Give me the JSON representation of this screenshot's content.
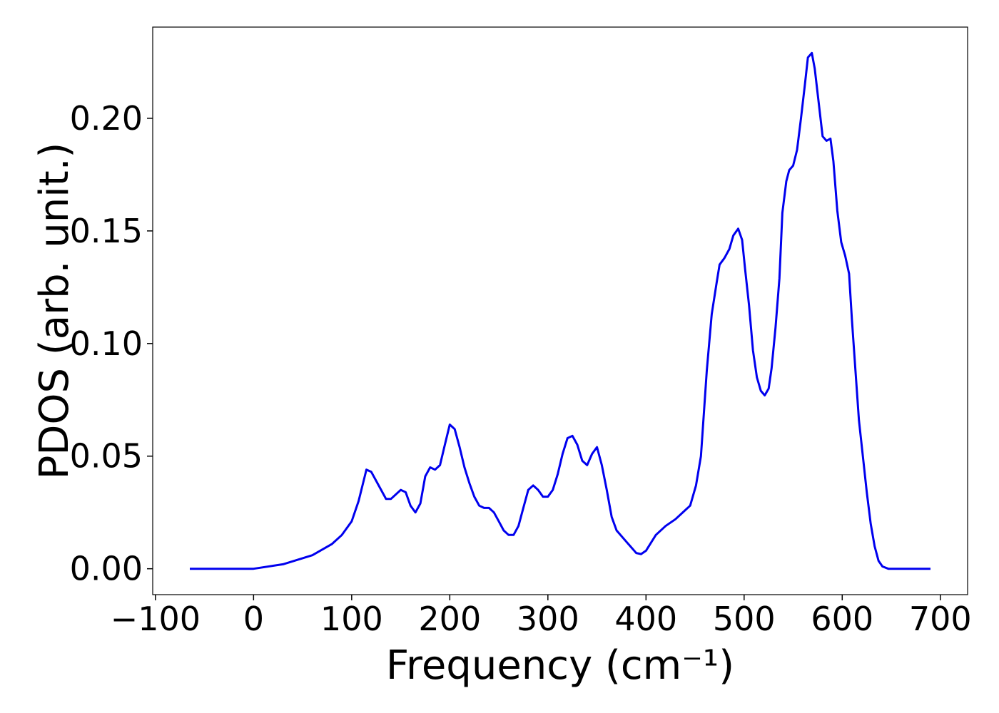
{
  "chart_data": {
    "type": "line",
    "xlabel": "Frequency (cm⁻¹)",
    "ylabel": "PDOS (arb. unit.)",
    "x": [
      -65,
      0,
      30,
      60,
      80,
      90,
      100,
      107,
      115,
      120,
      130,
      135,
      140,
      150,
      155,
      160,
      165,
      170,
      175,
      180,
      185,
      190,
      195,
      200,
      205,
      210,
      215,
      220,
      225,
      230,
      235,
      240,
      245,
      250,
      255,
      260,
      265,
      270,
      275,
      280,
      285,
      290,
      295,
      300,
      305,
      310,
      315,
      320,
      325,
      330,
      335,
      340,
      345,
      350,
      355,
      360,
      365,
      370,
      380,
      390,
      395,
      400,
      410,
      420,
      430,
      440,
      445,
      451,
      456,
      462,
      467,
      472,
      475,
      480,
      485,
      489,
      494,
      498,
      501,
      505,
      509,
      513,
      517,
      521,
      525,
      528,
      532,
      536,
      539,
      543,
      546,
      550,
      554,
      558,
      562,
      565,
      569,
      572,
      576,
      580,
      584,
      588,
      591,
      595,
      599,
      603,
      607,
      610,
      614,
      617,
      621,
      625,
      629,
      633,
      637,
      641,
      647,
      690
    ],
    "series": [
      {
        "name": "PDOS",
        "color": "#0000ee",
        "values": [
          0,
          0,
          0.002,
          0.006,
          0.011,
          0.015,
          0.021,
          0.03,
          0.044,
          0.043,
          0.035,
          0.031,
          0.031,
          0.035,
          0.034,
          0.028,
          0.025,
          0.029,
          0.041,
          0.045,
          0.044,
          0.046,
          0.055,
          0.064,
          0.062,
          0.054,
          0.045,
          0.038,
          0.032,
          0.028,
          0.027,
          0.027,
          0.025,
          0.021,
          0.017,
          0.015,
          0.015,
          0.019,
          0.027,
          0.035,
          0.037,
          0.035,
          0.032,
          0.032,
          0.035,
          0.042,
          0.051,
          0.058,
          0.059,
          0.055,
          0.048,
          0.046,
          0.051,
          0.054,
          0.046,
          0.035,
          0.023,
          0.017,
          0.012,
          0.007,
          0.0065,
          0.008,
          0.015,
          0.019,
          0.022,
          0.026,
          0.028,
          0.037,
          0.05,
          0.088,
          0.113,
          0.127,
          0.135,
          0.138,
          0.142,
          0.148,
          0.151,
          0.146,
          0.133,
          0.117,
          0.097,
          0.085,
          0.079,
          0.077,
          0.08,
          0.089,
          0.107,
          0.129,
          0.158,
          0.172,
          0.177,
          0.179,
          0.186,
          0.2,
          0.215,
          0.227,
          0.229,
          0.222,
          0.207,
          0.192,
          0.19,
          0.191,
          0.181,
          0.159,
          0.145,
          0.139,
          0.131,
          0.11,
          0.085,
          0.066,
          0.05,
          0.034,
          0.02,
          0.01,
          0.0035,
          0.001,
          0,
          0
        ]
      }
    ],
    "xlim": [
      -102.8,
      727.8
    ],
    "xticks": [
      {
        "value": -100,
        "label": "−100"
      },
      0,
      100,
      200,
      300,
      400,
      500,
      600,
      700
    ],
    "ylim": [
      -0.0115,
      0.2405
    ],
    "yticks": [
      {
        "value": 0,
        "label": "0.00"
      },
      {
        "value": 0.05,
        "label": "0.05"
      },
      {
        "value": 0.1,
        "label": "0.10"
      },
      {
        "value": 0.15,
        "label": "0.15"
      },
      {
        "value": 0.2,
        "label": "0.20"
      }
    ]
  }
}
